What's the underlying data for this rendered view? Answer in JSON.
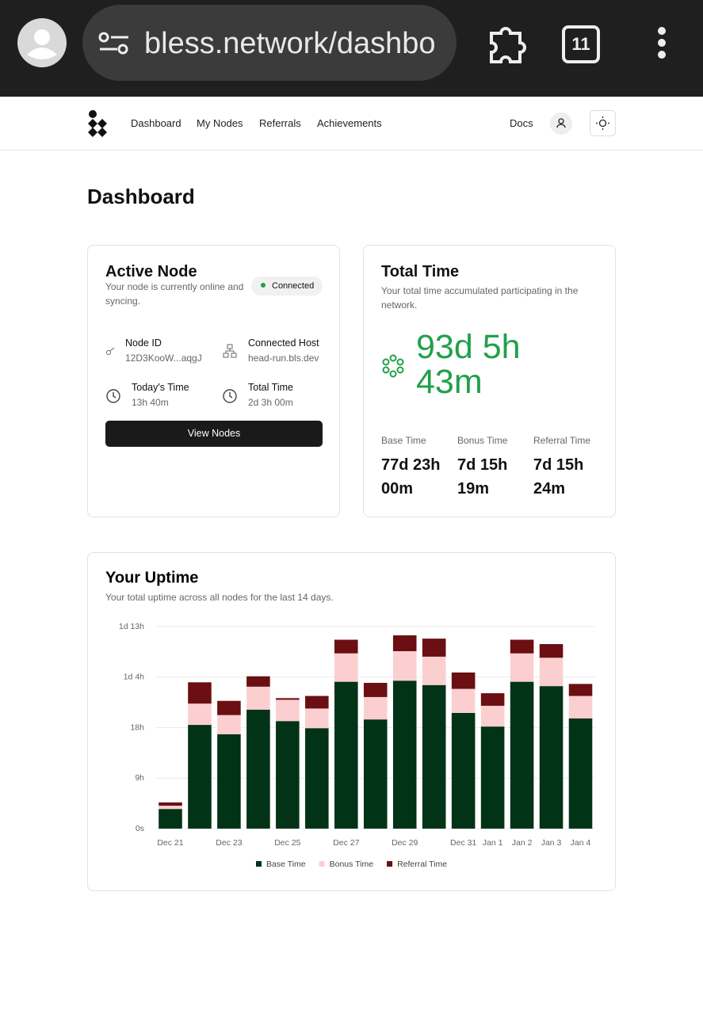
{
  "browser": {
    "url": "bless.network/dashbo",
    "tab_count": "11"
  },
  "nav": {
    "links": [
      "Dashboard",
      "My Nodes",
      "Referrals",
      "Achievements"
    ],
    "docs": "Docs"
  },
  "page_title": "Dashboard",
  "active_node": {
    "title": "Active Node",
    "subtitle": "Your node is currently online and syncing.",
    "status": "Connected",
    "fields": [
      {
        "label": "Node ID",
        "value": "12D3KooW...aqgJ"
      },
      {
        "label": "Connected Host",
        "value": "head-run.bls.dev"
      },
      {
        "label": "Today's Time",
        "value": "13h 40m"
      },
      {
        "label": "Total Time",
        "value": "2d 3h 00m"
      }
    ],
    "button": "View Nodes"
  },
  "total_time": {
    "title": "Total Time",
    "subtitle": "Your total time accumulated participating in the network.",
    "total": "93d 5h 43m",
    "breakdown": [
      {
        "label": "Base Time",
        "value": "77d 23h 00m"
      },
      {
        "label": "Bonus Time",
        "value": "7d 15h 19m"
      },
      {
        "label": "Referral Time",
        "value": "7d 15h 24m"
      }
    ]
  },
  "chart_data": {
    "type": "stacked-bar",
    "title": "Your Uptime",
    "subtitle": "Your total uptime across all nodes for the last 14 days.",
    "categories": [
      "Dec 21",
      null,
      "Dec 23",
      null,
      "Dec 25",
      null,
      "Dec 27",
      null,
      "Dec 29",
      null,
      "Dec 31",
      "Jan 1",
      "Jan 2",
      "Jan 3",
      "Jan 4"
    ],
    "series": [
      {
        "name": "Base Time",
        "color": "#023316",
        "values": [
          3.6,
          19.0,
          17.3,
          21.8,
          19.7,
          18.4,
          26.9,
          20.0,
          27.1,
          26.3,
          21.2,
          18.7,
          26.9,
          26.1,
          20.2
        ]
      },
      {
        "name": "Bonus Time",
        "color": "#fbcfd0",
        "values": [
          0.6,
          3.9,
          3.5,
          4.2,
          3.9,
          3.6,
          5.2,
          4.1,
          5.4,
          5.2,
          4.4,
          3.8,
          5.2,
          5.2,
          4.1
        ]
      },
      {
        "name": "Referral Time",
        "color": "#6b0f12",
        "values": [
          0.6,
          3.9,
          2.6,
          1.9,
          0.3,
          2.3,
          2.5,
          2.6,
          2.9,
          3.3,
          3.0,
          2.3,
          2.5,
          2.5,
          2.2
        ]
      }
    ],
    "ylim": [
      0,
      37
    ],
    "yticks": [
      {
        "value": 0,
        "label": "0s"
      },
      {
        "value": 9.25,
        "label": "9h"
      },
      {
        "value": 18.5,
        "label": "18h"
      },
      {
        "value": 27.75,
        "label": "1d 4h"
      },
      {
        "value": 37,
        "label": "1d 13h"
      }
    ],
    "grid": true
  }
}
